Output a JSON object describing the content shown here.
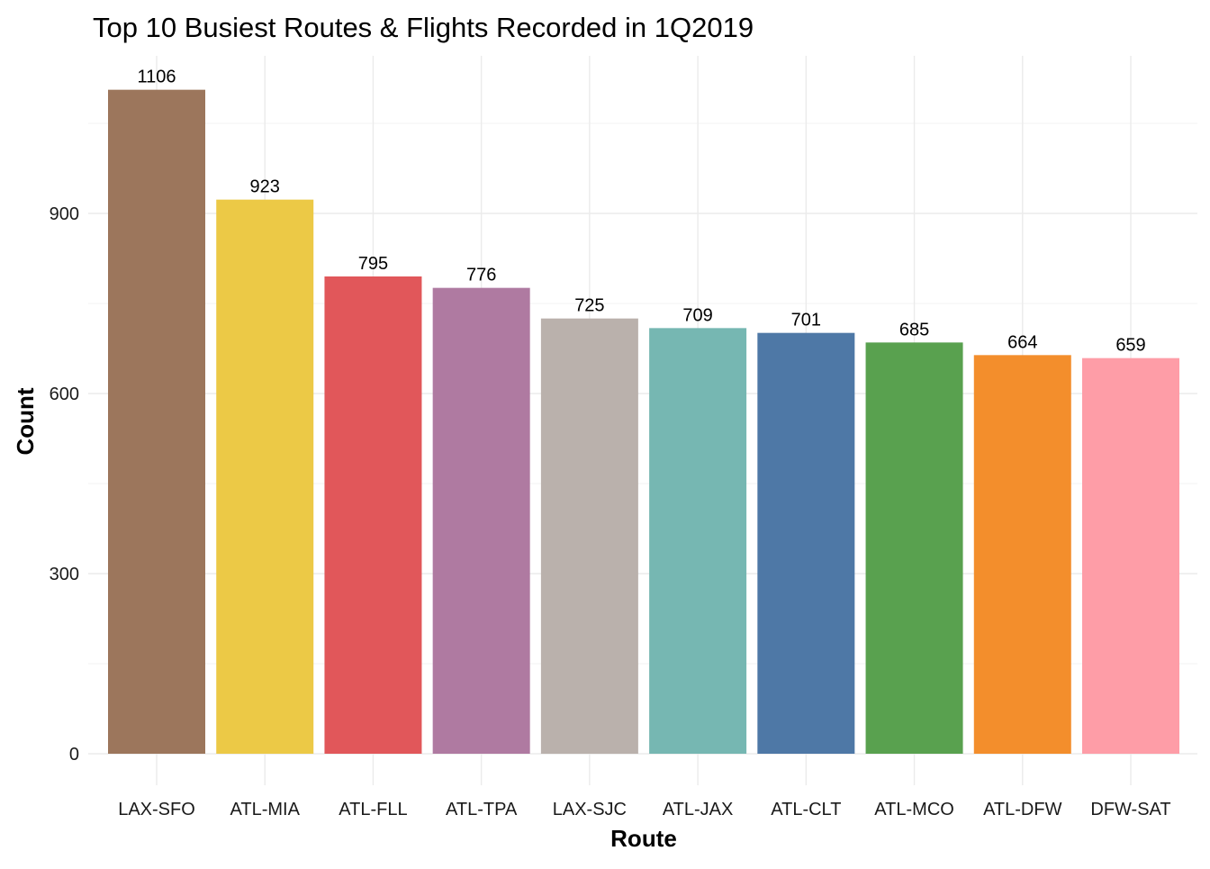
{
  "chart_data": {
    "type": "bar",
    "title": "Top 10 Busiest Routes & Flights Recorded in 1Q2019",
    "xlabel": "Route",
    "ylabel": "Count",
    "categories": [
      "LAX-SFO",
      "ATL-MIA",
      "ATL-FLL",
      "ATL-TPA",
      "LAX-SJC",
      "ATL-JAX",
      "ATL-CLT",
      "ATL-MCO",
      "ATL-DFW",
      "DFW-SAT"
    ],
    "values": [
      1106,
      923,
      795,
      776,
      725,
      709,
      701,
      685,
      664,
      659
    ],
    "colors": [
      "#9C765C",
      "#ECC946",
      "#E1575A",
      "#AF7AA1",
      "#BAB1AC",
      "#76B7B2",
      "#4E78A6",
      "#59A14F",
      "#F38E2C",
      "#FE9DA7"
    ],
    "y_ticks": [
      0,
      300,
      600,
      900
    ],
    "ylim": [
      0,
      1161
    ],
    "grid": true,
    "legend": "none"
  }
}
